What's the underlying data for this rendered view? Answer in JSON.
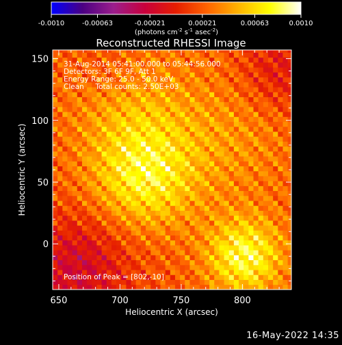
{
  "chart_data": {
    "type": "heatmap",
    "title": "Reconstructed RHESSI Image",
    "xlabel": "Heliocentric X (arcsec)",
    "ylabel": "Heliocentric Y (arcsec)",
    "xlim": [
      645,
      840
    ],
    "ylim": [
      -37,
      157
    ],
    "x_ticks": [
      650,
      700,
      750,
      800
    ],
    "y_ticks": [
      0,
      50,
      100,
      150
    ],
    "colorbar": {
      "min": -0.001,
      "max": 0.001,
      "ticks": [
        "-0.0010",
        "-0.00063",
        "-0.00021",
        "0.00021",
        "0.00063",
        "0.0010"
      ],
      "unit_base": "(photons cm",
      "unit_exp1": "-2",
      "unit_mid": " s",
      "unit_exp2": "-1",
      "unit_mid2": " asec",
      "unit_exp3": "-2",
      "unit_end": ")",
      "colormap": [
        "#0000ff",
        "#4b0082",
        "#9b1e8c",
        "#c8003c",
        "#e61e00",
        "#ff6400",
        "#ffb400",
        "#ffff00",
        "#ffffff"
      ]
    },
    "annotations": {
      "time": "31-Aug-2014 05:41:00.000 to 05:44:56.000",
      "detectors": "Detectors: 3F 6F 9F, Att 1",
      "energy": "Energy Range: 25.0 - 50.0 keV",
      "method": "Clean     Total counts: 2.50E+03",
      "peak": "Position of Peak = [802,-10]"
    },
    "peak_position": [
      802,
      -10
    ],
    "grid": false
  },
  "footer": {
    "date": "16-May-2022 14:35"
  }
}
